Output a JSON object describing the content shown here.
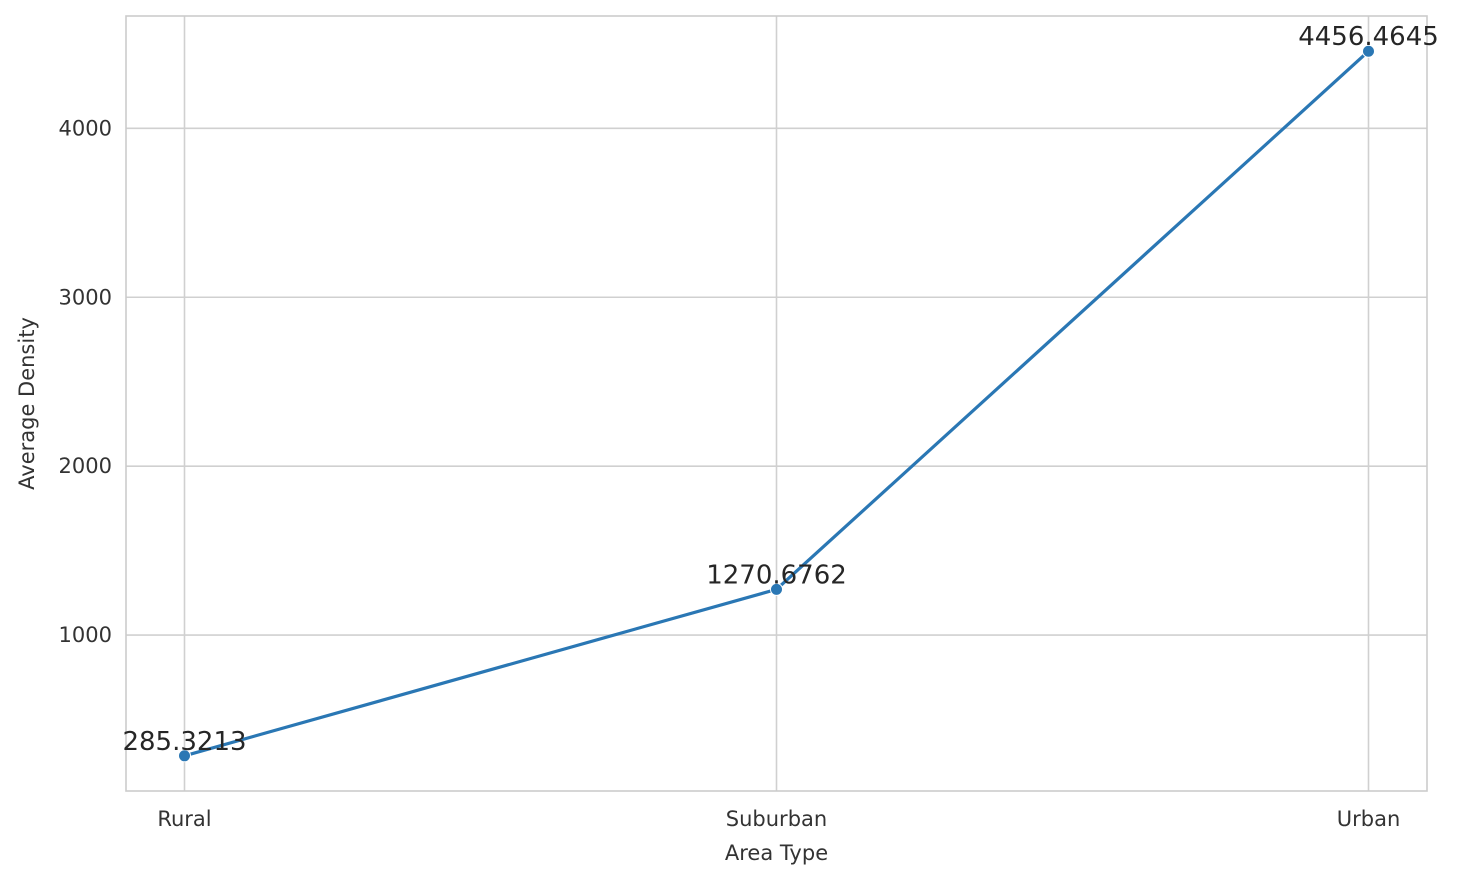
{
  "chart_data": {
    "type": "line",
    "title": "",
    "xlabel": "Area Type",
    "ylabel": "Average Density",
    "categories": [
      "Rural",
      "Suburban",
      "Urban"
    ],
    "series": [
      {
        "values": [
          285.3213,
          1270.6762,
          4456.4645
        ],
        "labels": [
          "285.3213",
          "1270.6762",
          "4456.4645"
        ],
        "color": "#2a77b4"
      }
    ],
    "yticks": [
      1000,
      2000,
      3000,
      4000
    ],
    "ytick_labels": [
      "1000",
      "2000",
      "3000",
      "4000"
    ],
    "ylim": [
      77,
      4665
    ],
    "grid": true,
    "legend": "none"
  }
}
